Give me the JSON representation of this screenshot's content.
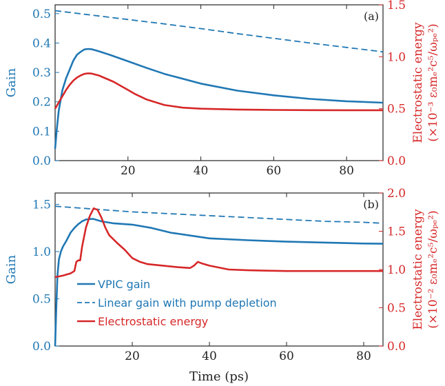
{
  "colors": {
    "gain": "#1f77b4",
    "energy": "#d62728",
    "frame": "#222222"
  },
  "xlabel": "Time (ps)",
  "legend": [
    {
      "label": "VPIC gain",
      "style": "solid",
      "color": "#1f77b4"
    },
    {
      "label": "Linear gain with pump depletion",
      "style": "dashed",
      "color": "#1f77b4"
    },
    {
      "label": "Electrostatic energy",
      "style": "solid",
      "color": "#d62728"
    }
  ],
  "chart_data": [
    {
      "type": "line",
      "panel_tag": "(a)",
      "xlabel": "",
      "ylabel": "Gain",
      "ylabel_right_line1": "Electrostatic energy",
      "ylabel_right_line2": "(×10⁻³ ε₀mₑ²c⁵/ωₚₑ²)",
      "xlim": [
        0,
        90
      ],
      "ylim": [
        0,
        0.53
      ],
      "ylim_right": [
        0,
        1.5
      ],
      "xticks": [
        20,
        40,
        60,
        80
      ],
      "yticks": [
        "0.0",
        "0.1",
        "0.2",
        "0.3",
        "0.4",
        "0.5"
      ],
      "yticks_right": [
        "0.0",
        "0.5",
        "1.0",
        "1.5"
      ],
      "series": [
        {
          "name": "VPIC gain",
          "axis": "left",
          "style": "solid",
          "x": [
            0,
            0.5,
            1,
            2,
            3,
            4,
            5,
            6,
            7,
            8,
            9,
            10,
            12,
            15,
            20,
            25,
            30,
            40,
            50,
            60,
            70,
            80,
            90
          ],
          "y": [
            0.04,
            0.11,
            0.17,
            0.24,
            0.28,
            0.31,
            0.34,
            0.36,
            0.37,
            0.378,
            0.38,
            0.379,
            0.372,
            0.36,
            0.338,
            0.316,
            0.295,
            0.262,
            0.238,
            0.222,
            0.21,
            0.202,
            0.197
          ]
        },
        {
          "name": "Linear gain with pump depletion",
          "axis": "left",
          "style": "dashed",
          "x": [
            0,
            10,
            20,
            30,
            40,
            50,
            60,
            70,
            80,
            90
          ],
          "y": [
            0.51,
            0.495,
            0.48,
            0.465,
            0.449,
            0.432,
            0.416,
            0.4,
            0.385,
            0.37
          ]
        },
        {
          "name": "Electrostatic energy",
          "axis": "right",
          "style": "solid",
          "x": [
            0,
            1,
            2,
            3,
            4,
            5,
            6,
            7,
            8,
            9,
            10,
            12,
            14,
            16,
            18,
            20,
            22,
            25,
            30,
            35,
            40,
            50,
            60,
            70,
            80,
            90
          ],
          "y": [
            0.5,
            0.56,
            0.62,
            0.68,
            0.73,
            0.77,
            0.8,
            0.82,
            0.835,
            0.84,
            0.838,
            0.82,
            0.79,
            0.76,
            0.72,
            0.68,
            0.64,
            0.59,
            0.535,
            0.51,
            0.5,
            0.492,
            0.488,
            0.486,
            0.485,
            0.485
          ]
        }
      ]
    },
    {
      "type": "line",
      "panel_tag": "(b)",
      "xlabel": "Time (ps)",
      "ylabel": "Gain",
      "ylabel_right_line1": "Electrostatic energy",
      "ylabel_right_line2": "(×10⁻² ε₀mₑ²c⁵/ωₚₑ²)",
      "xlim": [
        0,
        85
      ],
      "ylim": [
        0,
        1.62
      ],
      "ylim_right": [
        0,
        2.0
      ],
      "xticks": [
        20,
        40,
        60,
        80
      ],
      "yticks": [
        "0.0",
        "0.5",
        "1.0",
        "1.5"
      ],
      "yticks_right": [
        "0.0",
        "0.5",
        "1.0",
        "1.5",
        "2.0"
      ],
      "series": [
        {
          "name": "VPIC gain",
          "axis": "left",
          "style": "solid",
          "x": [
            0,
            0.3,
            0.6,
            1,
            1.5,
            2,
            3,
            4,
            5,
            6,
            7,
            8,
            9,
            10,
            12,
            15,
            20,
            25,
            30,
            40,
            50,
            60,
            70,
            80,
            85
          ],
          "y": [
            0.0,
            0.4,
            0.75,
            0.92,
            1.0,
            1.05,
            1.12,
            1.2,
            1.25,
            1.29,
            1.32,
            1.34,
            1.345,
            1.345,
            1.32,
            1.3,
            1.285,
            1.25,
            1.2,
            1.14,
            1.12,
            1.105,
            1.095,
            1.085,
            1.083
          ]
        },
        {
          "name": "Linear gain with pump depletion",
          "axis": "left",
          "style": "dashed",
          "x": [
            0,
            10,
            20,
            30,
            40,
            50,
            60,
            70,
            80,
            85
          ],
          "y": [
            1.48,
            1.45,
            1.42,
            1.4,
            1.38,
            1.36,
            1.34,
            1.32,
            1.31,
            1.3
          ]
        },
        {
          "name": "Electrostatic energy",
          "axis": "right",
          "style": "solid",
          "x": [
            0,
            2,
            4,
            5,
            5.5,
            6,
            6.5,
            7,
            8,
            9,
            10,
            11,
            12,
            13,
            14,
            16,
            18,
            20,
            22,
            24,
            28,
            32,
            35,
            36,
            37,
            38,
            40,
            45,
            50,
            60,
            70,
            80,
            85
          ],
          "y": [
            0.9,
            0.92,
            0.95,
            0.98,
            1.1,
            1.12,
            1.12,
            1.3,
            1.55,
            1.7,
            1.8,
            1.78,
            1.68,
            1.55,
            1.45,
            1.35,
            1.26,
            1.15,
            1.1,
            1.07,
            1.05,
            1.03,
            1.02,
            1.05,
            1.1,
            1.08,
            1.05,
            1.0,
            0.99,
            0.98,
            0.98,
            0.98,
            0.98
          ]
        }
      ]
    }
  ]
}
